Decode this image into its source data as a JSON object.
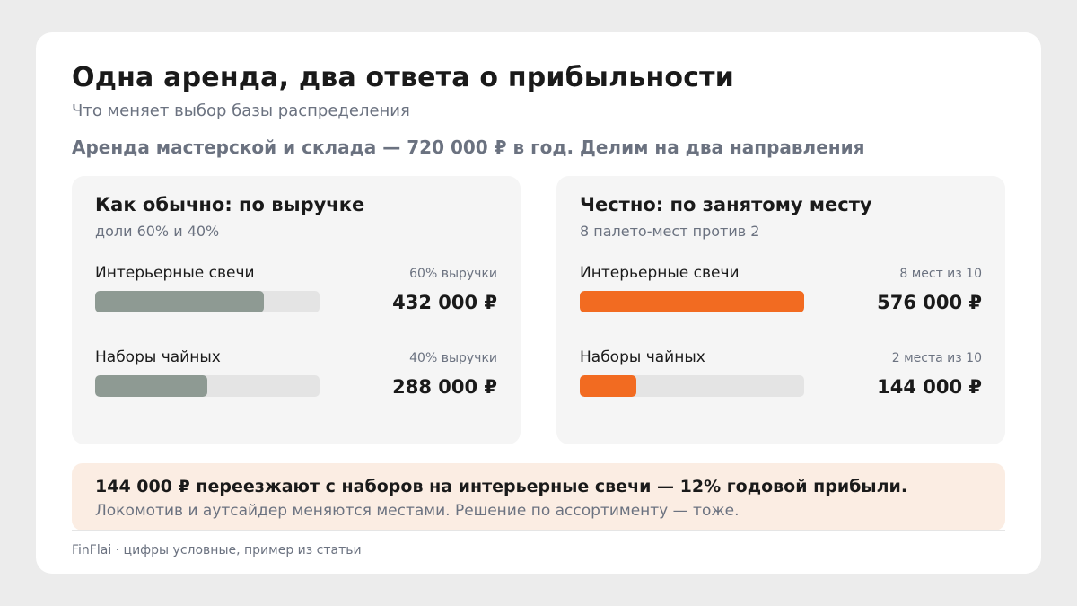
{
  "title": "Одна аренда, два ответа о прибыльности",
  "subtitle": "Что меняет выбор базы распределения",
  "lead": "Аренда мастерской и склада — 720 000 ₽ в год. Делим на два направления",
  "colors": {
    "revenue_bar": "#8e9a93",
    "space_bar": "#f26b21",
    "track": "#e4e4e4",
    "callout_bg": "#fbede3"
  },
  "panels": [
    {
      "title": "Как обычно: по выручке",
      "subtitle": "доли 60% и 40%",
      "bar_color": "#8e9a93",
      "rows": [
        {
          "label": "Интерьерные свечи",
          "note": "60% выручки",
          "value": "432 000 ₽",
          "share": 0.75
        },
        {
          "label": "Наборы чайных",
          "note": "40% выручки",
          "value": "288 000 ₽",
          "share": 0.5
        }
      ]
    },
    {
      "title": "Честно: по занятому месту",
      "subtitle": "8 палето-мест против 2",
      "bar_color": "#f26b21",
      "rows": [
        {
          "label": "Интерьерные свечи",
          "note": "8 мест из 10",
          "value": "576 000 ₽",
          "share": 1.0
        },
        {
          "label": "Наборы чайных",
          "note": "2 места из 10",
          "value": "144 000 ₽",
          "share": 0.25
        }
      ]
    }
  ],
  "callout": {
    "main": "144 000 ₽ переезжают с наборов на интерьерные свечи — 12% годовой прибыли.",
    "sub": "Локомотив и аутсайдер меняются местами. Решение по ассортименту — тоже."
  },
  "footer": "FinFlai · цифры условные, пример из статьи"
}
